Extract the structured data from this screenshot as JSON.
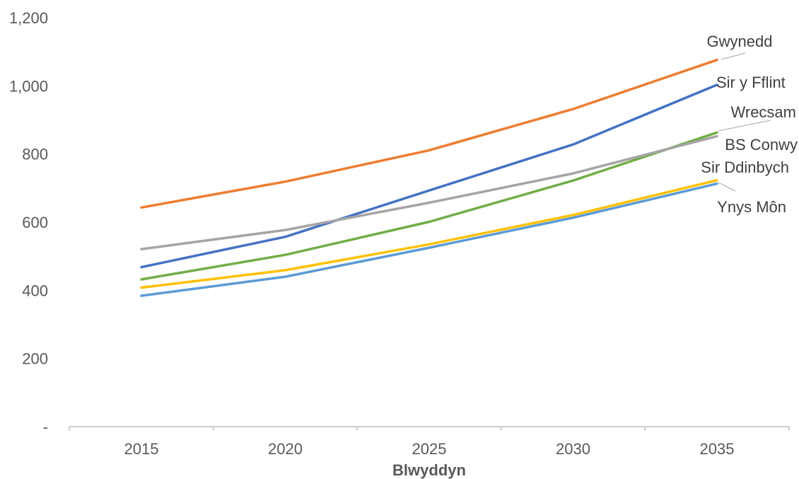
{
  "chart_data": {
    "type": "line",
    "title": "",
    "xlabel": "Blwyddyn",
    "ylabel": "",
    "x": [
      2015,
      2020,
      2025,
      2030,
      2035
    ],
    "ylim": [
      0,
      1200
    ],
    "yticks": [
      0,
      200,
      400,
      600,
      800,
      1000,
      1200
    ],
    "ytick_labels": [
      "-",
      "200",
      "400",
      "600",
      "800",
      "1,000",
      "1,200"
    ],
    "xtick_labels": [
      "2015",
      "2020",
      "2025",
      "2030",
      "2035"
    ],
    "grid": false,
    "legend": "none (series labelled at line ends)",
    "series": [
      {
        "name": "Gwynedd",
        "color": "#ED7D31",
        "values": [
          643,
          719,
          811,
          932,
          1076
        ]
      },
      {
        "name": "Sir y Fflint",
        "color": "#4472C4",
        "values": [
          468,
          557,
          693,
          828,
          1003
        ]
      },
      {
        "name": "Wrecsam",
        "color": "#70AD47",
        "values": [
          432,
          504,
          601,
          722,
          863
        ]
      },
      {
        "name": "BS Conwy",
        "color": "#A5A5A5",
        "values": [
          521,
          577,
          657,
          743,
          852
        ]
      },
      {
        "name": "Sir Ddinbych",
        "color": "#FFC000",
        "values": [
          408,
          459,
          535,
          621,
          723
        ]
      },
      {
        "name": "Ynys Môn",
        "color": "#5B9BD5",
        "values": [
          384,
          440,
          525,
          613,
          713
        ]
      }
    ]
  }
}
